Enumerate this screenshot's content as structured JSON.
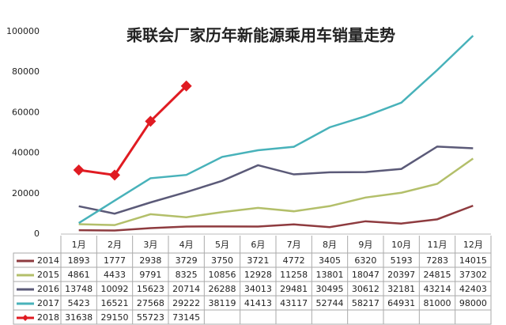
{
  "chart_data": {
    "type": "line",
    "title": "乘联会厂家历年新能源乘用车销量走势",
    "categories": [
      "1月",
      "2月",
      "3月",
      "4月",
      "5月",
      "6月",
      "7月",
      "8月",
      "9月",
      "10月",
      "11月",
      "12月"
    ],
    "ylim": [
      0,
      100000
    ],
    "yticks": [
      0,
      20000,
      40000,
      60000,
      80000,
      100000
    ],
    "grid": false,
    "data_table": true,
    "series": [
      {
        "name": "2014",
        "color": "#8e3b3f",
        "values": [
          1893,
          1777,
          2938,
          3729,
          3750,
          3721,
          4772,
          3405,
          6320,
          5193,
          7283,
          14015
        ]
      },
      {
        "name": "2015",
        "color": "#b3bf6a",
        "values": [
          4861,
          4433,
          9791,
          8325,
          10856,
          12928,
          11258,
          13801,
          18047,
          20397,
          24815,
          37302
        ]
      },
      {
        "name": "2016",
        "color": "#5b5a78",
        "values": [
          13748,
          10092,
          15623,
          20714,
          26288,
          34013,
          29481,
          30495,
          30612,
          32181,
          43214,
          42403
        ]
      },
      {
        "name": "2017",
        "color": "#48b2ba",
        "values": [
          5423,
          16521,
          27568,
          29222,
          38119,
          41413,
          43117,
          52744,
          58217,
          64931,
          81000,
          98000
        ]
      },
      {
        "name": "2018",
        "color": "#e01b22",
        "marker": "diamond",
        "values": [
          31638,
          29150,
          55723,
          73145,
          null,
          null,
          null,
          null,
          null,
          null,
          null,
          null
        ]
      }
    ]
  }
}
